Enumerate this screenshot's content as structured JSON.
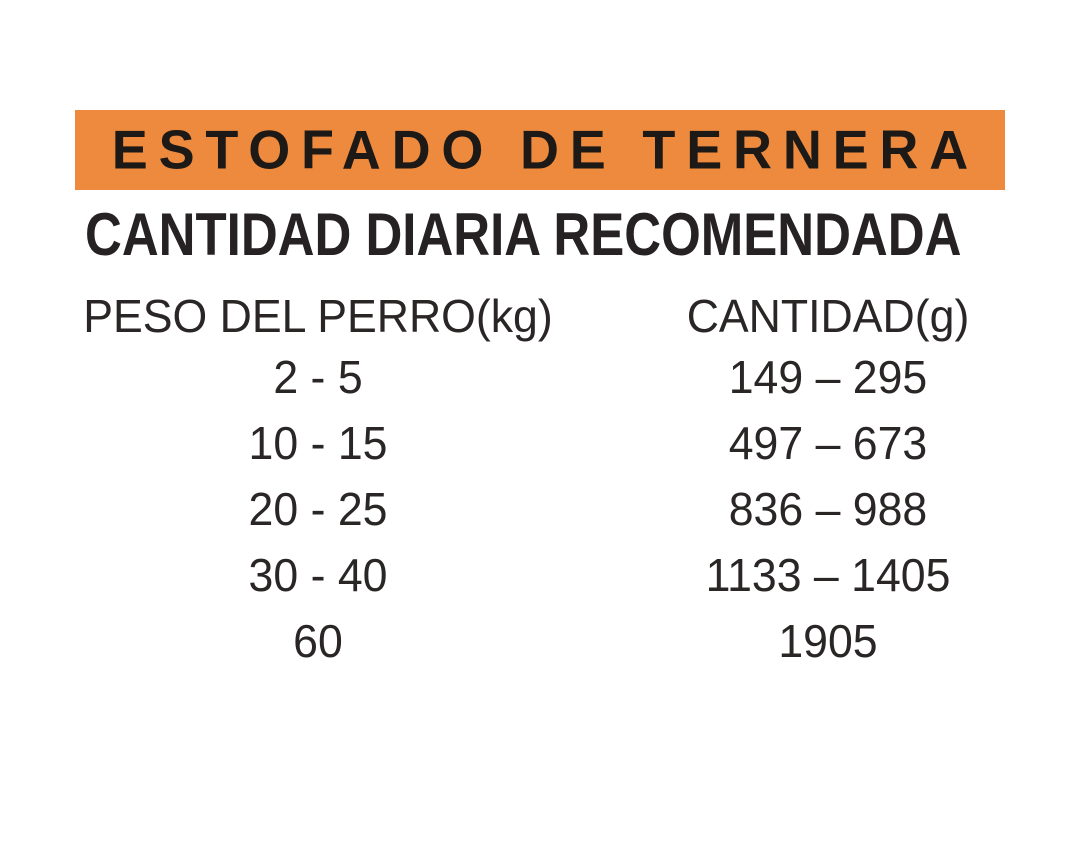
{
  "product": {
    "banner_title": "ESTOFADO DE TERNERA",
    "section_title": "CANTIDAD DIARIA RECOMENDADA"
  },
  "table": {
    "columns": [
      {
        "label": "PESO DEL PERRO(kg)"
      },
      {
        "label": "CANTIDAD(g)"
      }
    ],
    "rows": [
      {
        "peso": "2 - 5",
        "cantidad": "149 – 295"
      },
      {
        "peso": "10 - 15",
        "cantidad": "497 – 673"
      },
      {
        "peso": "20 - 25",
        "cantidad": "836 – 988"
      },
      {
        "peso": "30 - 40",
        "cantidad": "1133 – 1405"
      },
      {
        "peso": "60",
        "cantidad": "1905"
      }
    ]
  },
  "colors": {
    "banner_bg": "#ee8a3e",
    "text": "#242021"
  }
}
